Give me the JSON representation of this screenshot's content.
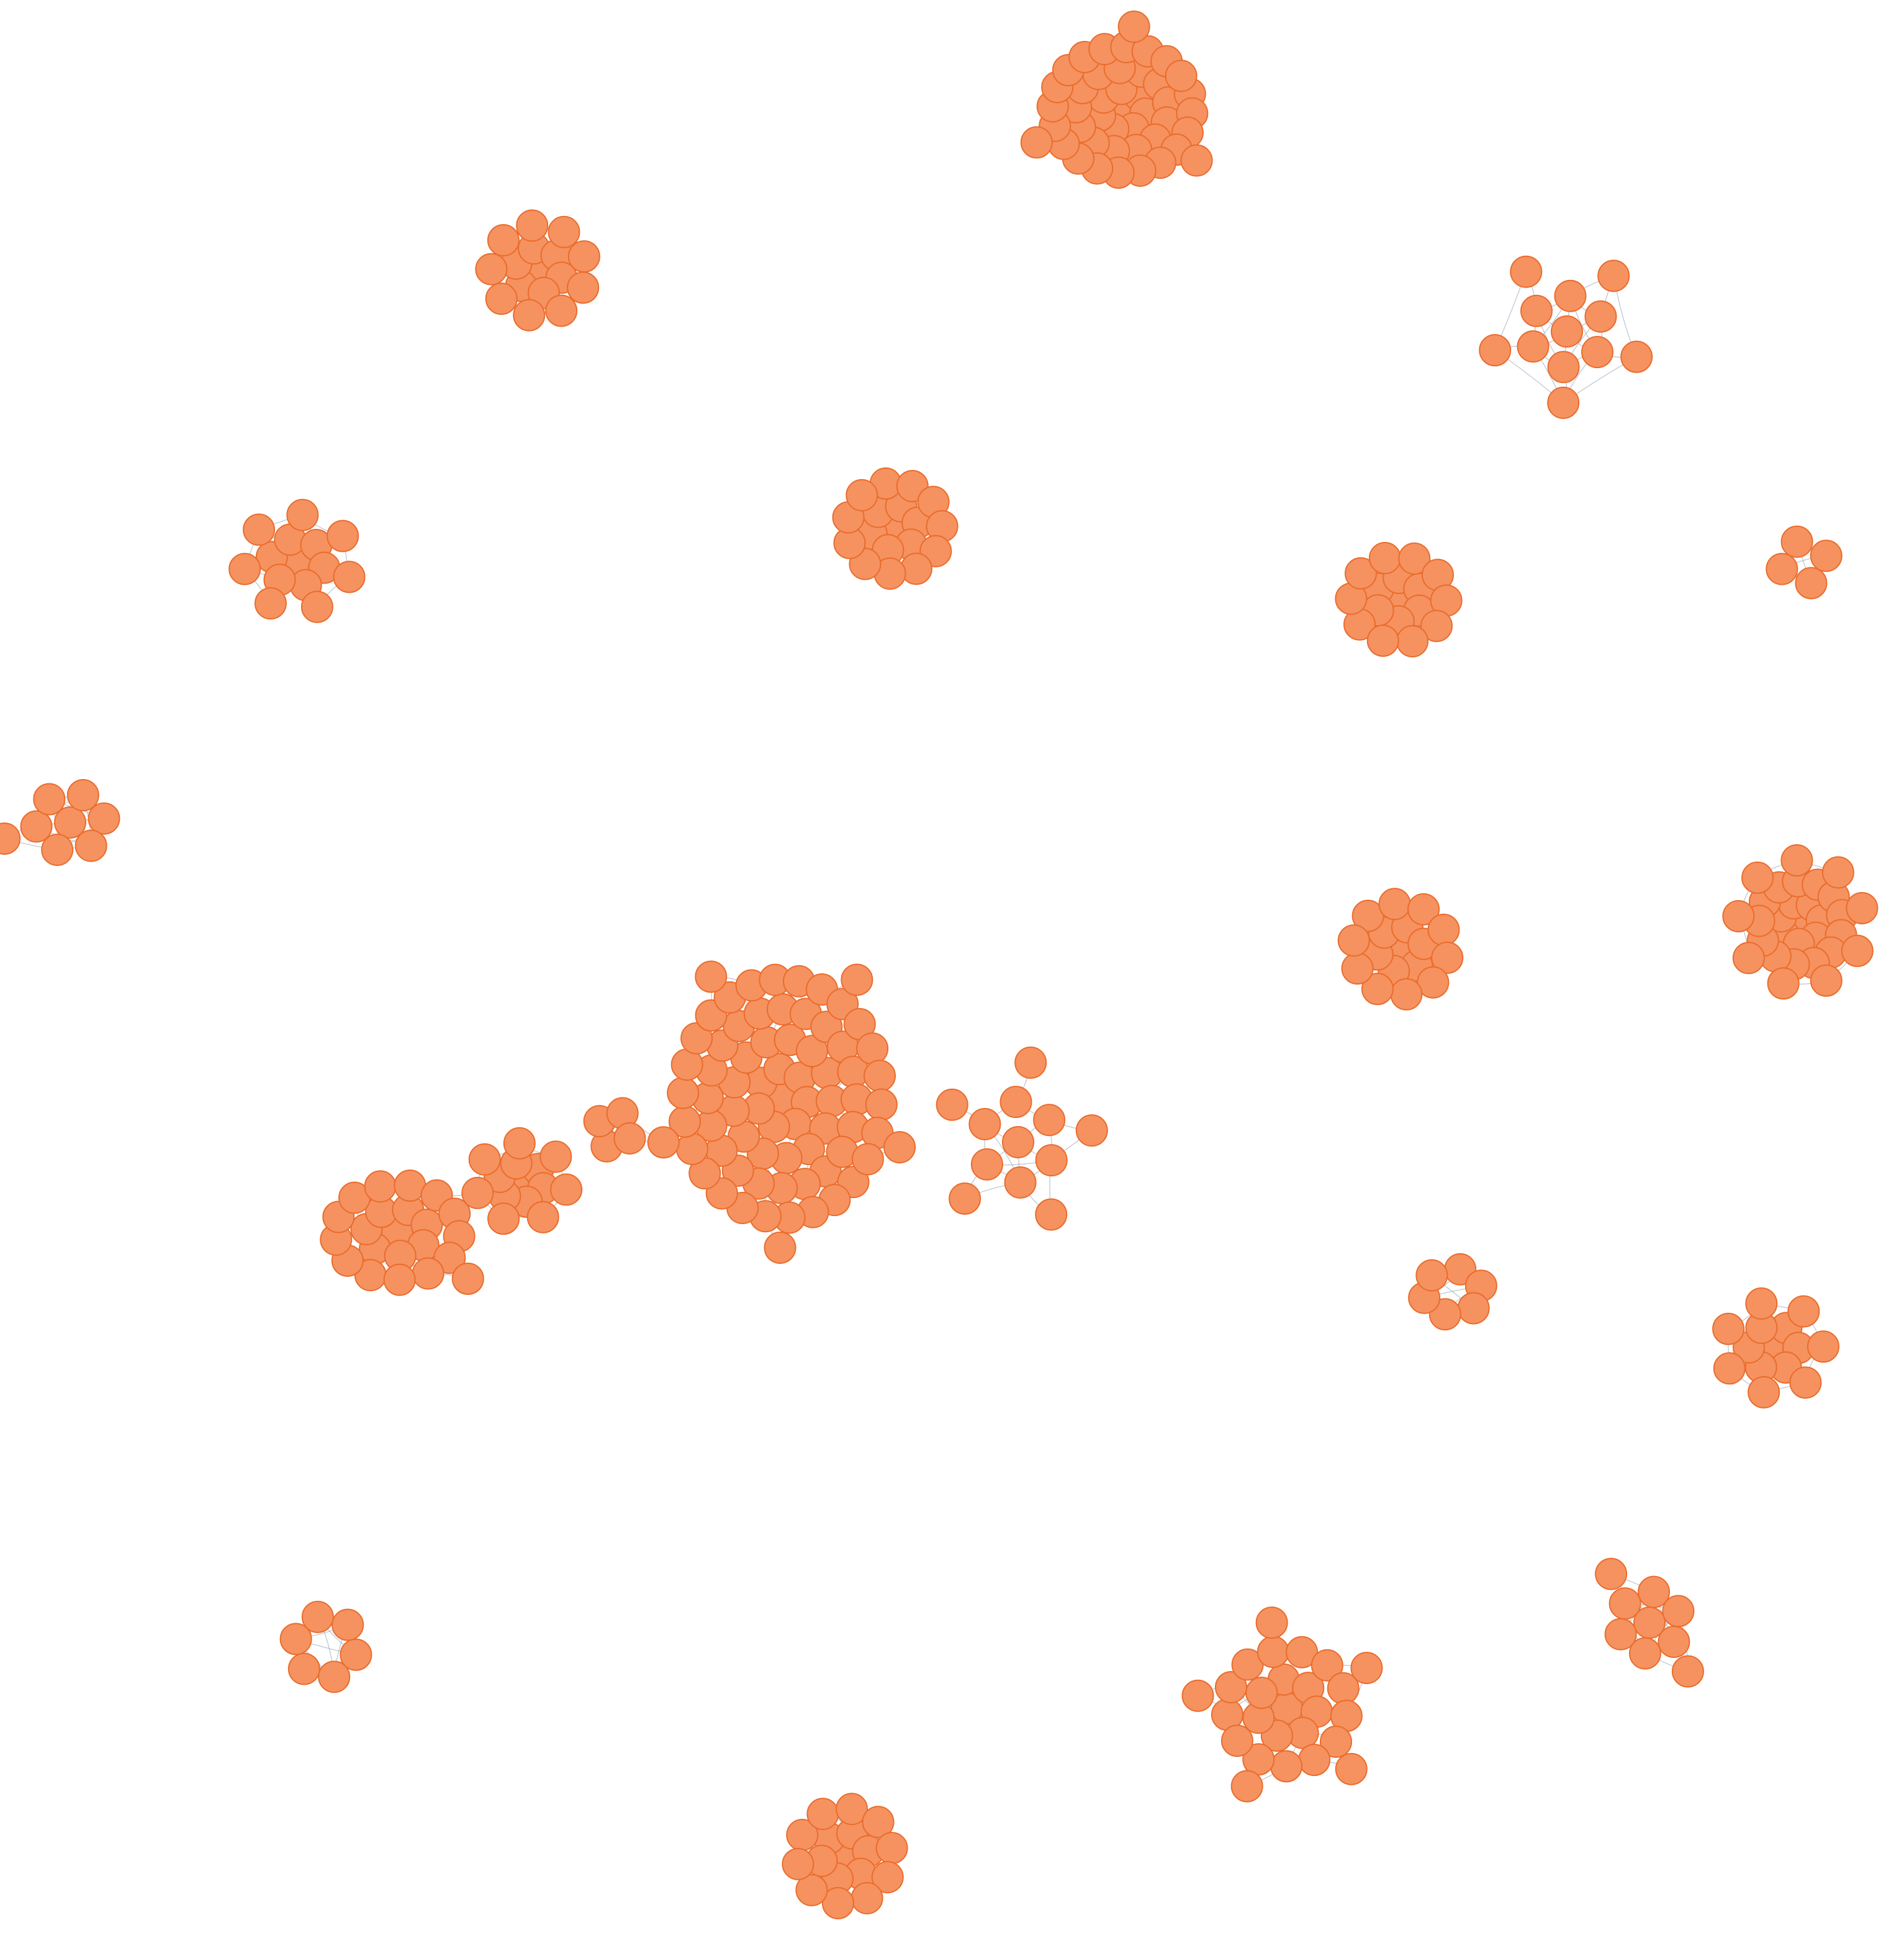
{
  "colors": {
    "node_fill": "#f59260",
    "node_stroke": "#ea6c2c",
    "edge": "#aab4c6",
    "label": "#ffffff"
  },
  "clusters": [
    {
      "id": "c1",
      "center": "top",
      "nodes": 44
    },
    {
      "id": "c2",
      "center": "upper-left",
      "nodes": 16
    },
    {
      "id": "c3",
      "center": "upper-right",
      "nodes": 12
    },
    {
      "id": "c4",
      "center": "left",
      "nodes": 14
    },
    {
      "id": "c5",
      "center": "upper-middle",
      "nodes": 18
    },
    {
      "id": "c6",
      "center": "middle-right",
      "nodes": 17
    },
    {
      "id": "c7",
      "center": "far-right-small",
      "nodes": 4
    },
    {
      "id": "c8",
      "center": "far-left",
      "nodes": 8
    },
    {
      "id": "c9",
      "center": "right",
      "nodes": 17
    },
    {
      "id": "c10",
      "center": "far-right",
      "nodes": 30
    },
    {
      "id": "c11",
      "center": "center-main",
      "nodes": 124
    },
    {
      "id": "c12",
      "center": "right-small",
      "nodes": 6
    },
    {
      "id": "c13",
      "center": "lower-right",
      "nodes": 14
    },
    {
      "id": "c14",
      "center": "lower-left",
      "nodes": 6
    },
    {
      "id": "c15",
      "center": "bottom-right",
      "nodes": 9
    },
    {
      "id": "c16",
      "center": "bottom",
      "nodes": 26
    },
    {
      "id": "c17",
      "center": "bottom-middle",
      "nodes": 17
    }
  ]
}
